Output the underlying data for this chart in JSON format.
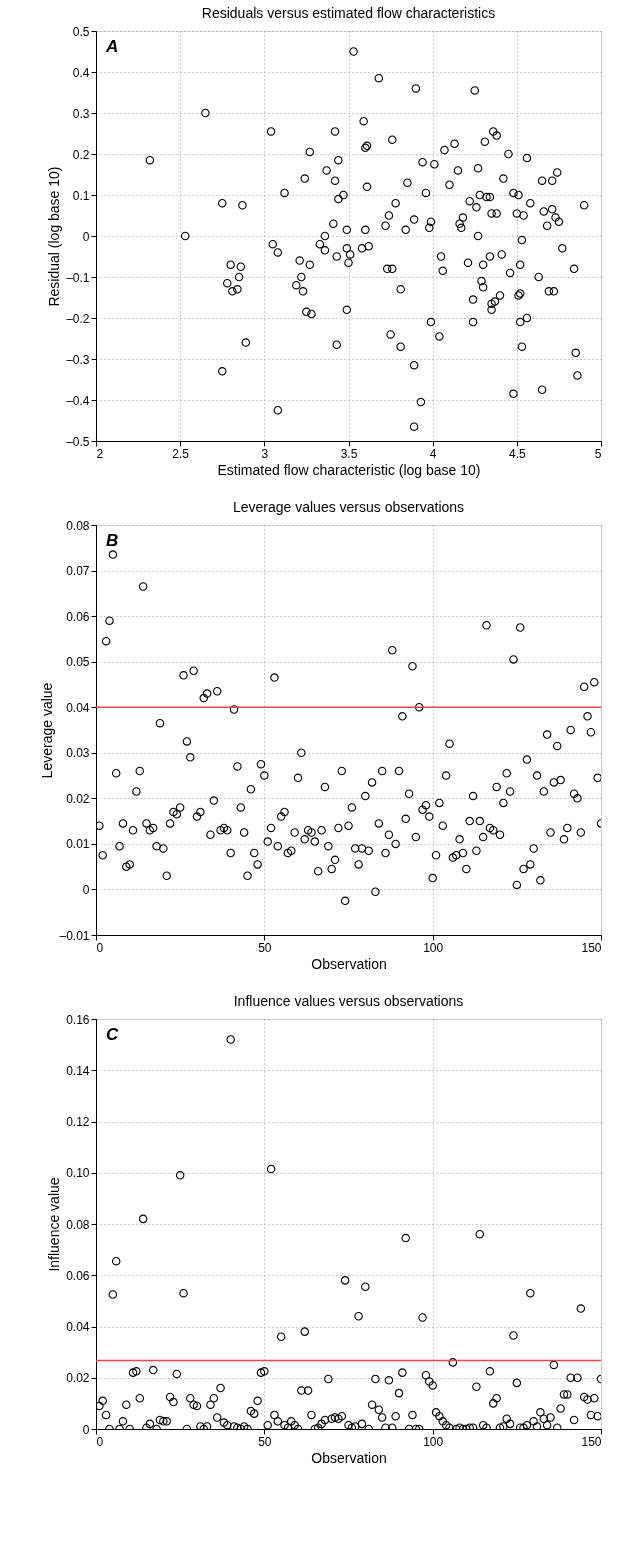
{
  "chart_data": [
    {
      "type": "scatter",
      "title": "Residuals versus estimated flow characteristics",
      "xlabel": "Estimated flow characteristic (log base 10)",
      "ylabel": "Residual (log base 10)",
      "annotations": [
        "A"
      ],
      "grid": true,
      "marker": "circle",
      "xlim": [
        2,
        5
      ],
      "xticks": [
        2,
        2.5,
        3,
        3.5,
        4,
        4.5,
        5
      ],
      "ylim": [
        -0.5,
        0.5
      ],
      "yticks": [
        {
          "value": -0.5,
          "label": "–0.5"
        },
        {
          "value": -0.4,
          "label": "–0.4"
        },
        {
          "value": -0.3,
          "label": "–0.3"
        },
        {
          "value": -0.2,
          "label": "–0.2"
        },
        {
          "value": -0.1,
          "label": "–0.1"
        },
        0,
        0.1,
        0.2,
        0.3,
        0.4,
        0.5
      ],
      "series": [
        {
          "color": "#000000",
          "x": [
            2.32,
            2.53,
            2.65,
            2.75,
            2.87,
            2.75,
            2.78,
            2.8,
            2.81,
            2.84,
            2.85,
            2.86,
            2.89,
            3.04,
            3.05,
            3.08,
            3.08,
            3.12,
            3.19,
            3.21,
            3.22,
            3.23,
            3.24,
            3.25,
            3.27,
            3.28,
            3.27,
            3.33,
            3.36,
            3.37,
            3.36,
            3.42,
            3.42,
            3.43,
            3.44,
            3.44,
            3.41,
            3.43,
            3.47,
            3.49,
            3.49,
            3.49,
            3.51,
            3.5,
            3.53,
            3.58,
            3.59,
            3.6,
            3.61,
            3.61,
            3.62,
            3.6,
            3.68,
            3.72,
            3.74,
            3.73,
            3.75,
            3.76,
            3.76,
            3.78,
            3.81,
            3.81,
            3.84,
            3.85,
            3.89,
            3.9,
            3.89,
            3.89,
            3.93,
            3.94,
            3.96,
            3.98,
            3.99,
            3.99,
            4.01,
            4.04,
            4.05,
            4.06,
            4.07,
            4.1,
            4.13,
            4.15,
            4.16,
            4.17,
            4.18,
            4.21,
            4.22,
            4.24,
            4.24,
            4.25,
            4.26,
            4.27,
            4.27,
            4.28,
            4.29,
            4.3,
            4.3,
            4.31,
            4.32,
            4.34,
            4.34,
            4.35,
            4.35,
            4.35,
            4.36,
            4.37,
            4.38,
            4.38,
            4.4,
            4.41,
            4.42,
            4.45,
            4.46,
            4.48,
            4.48,
            4.5,
            4.51,
            4.51,
            4.52,
            4.52,
            4.52,
            4.53,
            4.53,
            4.54,
            4.56,
            4.56,
            4.58,
            4.63,
            4.65,
            4.65,
            4.66,
            4.68,
            4.69,
            4.71,
            4.71,
            4.72,
            4.73,
            4.74,
            4.75,
            4.77,
            4.84,
            4.85,
            4.86,
            4.9
          ],
          "values": [
            0.185,
            0.0,
            0.3,
            0.08,
            0.075,
            -0.33,
            -0.115,
            -0.07,
            -0.135,
            -0.13,
            -0.1,
            -0.075,
            -0.26,
            0.255,
            -0.02,
            -0.04,
            -0.425,
            0.105,
            -0.12,
            -0.06,
            -0.1,
            -0.135,
            0.14,
            -0.185,
            -0.07,
            -0.19,
            0.205,
            -0.02,
            -0.035,
            0.16,
            0.0,
            0.135,
            0.255,
            -0.05,
            0.09,
            0.185,
            0.03,
            -0.265,
            0.1,
            0.015,
            -0.18,
            -0.03,
            -0.045,
            -0.065,
            0.45,
            -0.03,
            0.28,
            0.215,
            0.22,
            0.12,
            -0.025,
            0.015,
            0.385,
            0.025,
            0.05,
            -0.08,
            -0.24,
            -0.08,
            0.235,
            0.08,
            -0.27,
            -0.13,
            0.015,
            0.13,
            0.04,
            0.36,
            -0.315,
            -0.465,
            -0.405,
            0.18,
            0.105,
            0.02,
            0.035,
            -0.21,
            0.175,
            -0.245,
            -0.05,
            -0.085,
            0.21,
            0.125,
            0.225,
            0.16,
            0.03,
            0.02,
            0.045,
            -0.065,
            0.085,
            -0.155,
            -0.21,
            0.355,
            0.07,
            0.165,
            0.0,
            0.1,
            -0.11,
            -0.125,
            -0.07,
            0.23,
            0.095,
            0.095,
            -0.05,
            0.055,
            -0.165,
            -0.18,
            0.255,
            -0.16,
            0.245,
            0.055,
            -0.145,
            -0.045,
            0.14,
            0.2,
            -0.09,
            -0.385,
            0.105,
            0.055,
            -0.145,
            0.1,
            -0.21,
            -0.14,
            -0.07,
            -0.27,
            -0.01,
            0.05,
            0.19,
            -0.2,
            0.08,
            -0.1,
            0.135,
            -0.375,
            0.06,
            0.025,
            -0.135,
            0.065,
            0.135,
            -0.135,
            0.045,
            0.155,
            0.035,
            -0.03,
            -0.08,
            -0.285,
            -0.34,
            0.075
          ]
        }
      ]
    },
    {
      "type": "scatter",
      "title": "Leverage values versus observations",
      "xlabel": "Observation",
      "ylabel": "Leverage value",
      "annotations": [
        "B"
      ],
      "grid": true,
      "marker": "circle",
      "xlim": [
        0,
        150
      ],
      "xticks": [
        0,
        50,
        100,
        150
      ],
      "ylim": [
        -0.01,
        0.08
      ],
      "yticks": [
        {
          "value": -0.01,
          "label": "–0.01"
        },
        0,
        0.01,
        0.02,
        0.03,
        0.04,
        0.05,
        0.06,
        0.07,
        0.08
      ],
      "ref_lines": [
        {
          "axis": "y",
          "value": 0.04,
          "color": "#e8474c"
        }
      ],
      "series": [
        {
          "color": "#000000",
          "x": [
            1,
            2,
            3,
            4,
            5,
            6,
            7,
            8,
            9,
            10,
            11,
            12,
            13,
            14,
            15,
            16,
            17,
            18,
            19,
            20,
            21,
            22,
            23,
            24,
            25,
            26,
            27,
            28,
            29,
            30,
            31,
            32,
            33,
            34,
            35,
            36,
            37,
            38,
            39,
            40,
            41,
            42,
            43,
            44,
            45,
            46,
            47,
            48,
            49,
            50,
            51,
            52,
            53,
            54,
            55,
            56,
            57,
            58,
            59,
            60,
            61,
            62,
            63,
            64,
            65,
            66,
            67,
            68,
            69,
            70,
            71,
            72,
            73,
            74,
            75,
            76,
            77,
            78,
            79,
            80,
            81,
            82,
            83,
            84,
            85,
            86,
            87,
            88,
            89,
            90,
            91,
            92,
            93,
            94,
            95,
            96,
            97,
            98,
            99,
            100,
            101,
            102,
            103,
            104,
            105,
            106,
            107,
            108,
            109,
            110,
            111,
            112,
            113,
            114,
            115,
            116,
            117,
            118,
            119,
            120,
            121,
            122,
            123,
            124,
            125,
            126,
            127,
            128,
            129,
            130,
            131,
            132,
            133,
            134,
            135,
            136,
            137,
            138,
            139,
            140,
            141,
            142,
            143,
            144,
            145,
            146,
            147,
            148,
            149,
            150
          ],
          "values": [
            0.014,
            0.0075,
            0.0545,
            0.059,
            0.0735,
            0.0255,
            0.0095,
            0.0145,
            0.005,
            0.0055,
            0.013,
            0.0215,
            0.026,
            0.0665,
            0.0145,
            0.013,
            0.0135,
            0.0095,
            0.0365,
            0.009,
            0.003,
            0.0145,
            0.017,
            0.0165,
            0.018,
            0.047,
            0.0325,
            0.029,
            0.048,
            0.016,
            0.017,
            0.042,
            0.043,
            0.012,
            0.0195,
            0.0435,
            0.013,
            0.0135,
            0.013,
            0.008,
            0.0395,
            0.027,
            0.018,
            0.0125,
            0.003,
            0.022,
            0.008,
            0.0055,
            0.0275,
            0.025,
            0.0105,
            0.0135,
            0.0465,
            0.0095,
            0.016,
            0.017,
            0.008,
            0.0085,
            0.0125,
            0.0245,
            0.03,
            0.011,
            0.013,
            0.0125,
            0.0105,
            0.004,
            0.013,
            0.0225,
            0.0095,
            0.0045,
            0.0065,
            0.0135,
            0.026,
            -0.0025,
            0.014,
            0.018,
            0.009,
            0.0055,
            0.009,
            0.0205,
            0.0085,
            0.0235,
            -0.0005,
            0.0145,
            0.026,
            0.008,
            0.012,
            0.0525,
            0.01,
            0.026,
            0.038,
            0.0155,
            0.021,
            0.049,
            0.0115,
            0.04,
            0.0175,
            0.0185,
            0.016,
            0.0025,
            0.0075,
            0.019,
            0.014,
            0.025,
            0.032,
            0.007,
            0.0075,
            0.011,
            0.008,
            0.0045,
            0.015,
            0.0205,
            0.0085,
            0.015,
            0.0115,
            0.058,
            0.0135,
            0.013,
            0.0225,
            0.012,
            0.019,
            0.0255,
            0.0215,
            0.0505,
            0.001,
            0.0575,
            0.0045,
            0.0285,
            0.0055,
            0.009,
            0.025,
            0.002,
            0.0215,
            0.034,
            0.0125,
            0.0235,
            0.0315,
            0.024,
            0.011,
            0.0135,
            0.035,
            0.021,
            0.02,
            0.0125,
            0.0445,
            0.038,
            0.0345,
            0.0455,
            0.0245,
            0.0145
          ]
        }
      ]
    },
    {
      "type": "scatter",
      "title": "Influence values versus observations",
      "xlabel": "Observation",
      "ylabel": "Influence value",
      "annotations": [
        "C"
      ],
      "grid": true,
      "marker": "circle",
      "xlim": [
        0,
        150
      ],
      "xticks": [
        0,
        50,
        100,
        150
      ],
      "ylim": [
        0,
        0.16
      ],
      "yticks": [
        0,
        0.02,
        0.04,
        0.06,
        0.08,
        {
          "value": 0.1,
          "label": "0.10"
        },
        0.12,
        0.14,
        0.16
      ],
      "ref_lines": [
        {
          "axis": "y",
          "value": 0.0267,
          "color": "#e8474c"
        }
      ],
      "series": [
        {
          "color": "#000000",
          "x": [
            1,
            2,
            3,
            4,
            5,
            6,
            7,
            8,
            9,
            10,
            11,
            12,
            13,
            14,
            15,
            16,
            17,
            18,
            19,
            20,
            21,
            22,
            23,
            24,
            25,
            26,
            27,
            28,
            29,
            30,
            31,
            32,
            33,
            34,
            35,
            36,
            37,
            38,
            39,
            40,
            41,
            42,
            43,
            44,
            45,
            46,
            47,
            48,
            49,
            50,
            51,
            52,
            53,
            54,
            55,
            56,
            57,
            58,
            59,
            60,
            61,
            62,
            63,
            64,
            65,
            66,
            67,
            68,
            69,
            70,
            71,
            72,
            73,
            74,
            75,
            76,
            77,
            78,
            79,
            80,
            81,
            82,
            83,
            84,
            85,
            86,
            87,
            88,
            89,
            90,
            91,
            92,
            93,
            94,
            95,
            96,
            97,
            98,
            99,
            100,
            101,
            102,
            103,
            104,
            105,
            106,
            107,
            108,
            109,
            110,
            111,
            112,
            113,
            114,
            115,
            116,
            117,
            118,
            119,
            120,
            121,
            122,
            123,
            124,
            125,
            126,
            127,
            128,
            129,
            130,
            131,
            132,
            133,
            134,
            135,
            136,
            137,
            138,
            139,
            140,
            141,
            142,
            143,
            144,
            145,
            146,
            147,
            148,
            149,
            150
          ],
          "values": [
            0.009,
            0.011,
            0.0055,
            0,
            0.0525,
            0.0655,
            0,
            0.003,
            0.0095,
            0,
            0.022,
            0.0225,
            0.012,
            0.082,
            0.0005,
            0.002,
            0.023,
            0,
            0.0035,
            0.003,
            0.003,
            0.0125,
            0.0105,
            0.0215,
            0.099,
            0.053,
            0,
            0.012,
            0.0095,
            0.009,
            0.001,
            0,
            0.001,
            0.0095,
            0.012,
            0.0045,
            0.016,
            0.0025,
            0.0015,
            0.152,
            0.001,
            0.0005,
            0,
            0.001,
            0,
            0.007,
            0.006,
            0.011,
            0.022,
            0.0225,
            0.0015,
            0.1015,
            0.0055,
            0.003,
            0.036,
            0.0015,
            0.0005,
            0.003,
            0.0015,
            0,
            0.015,
            0.038,
            0.015,
            0.0055,
            0,
            0.0005,
            0.002,
            0.0035,
            0.0195,
            0.004,
            0.0045,
            0.004,
            0.005,
            0.058,
            0.0015,
            0.0005,
            0.001,
            0.044,
            0.002,
            0.0555,
            0,
            0.0095,
            0.0195,
            0.0075,
            0.0045,
            0.0005,
            0.019,
            0.0005,
            0.005,
            0.014,
            0.022,
            0.0745,
            0,
            0.0055,
            0,
            0,
            0.0435,
            0.021,
            0.0185,
            0.017,
            0.0065,
            0.005,
            0.003,
            0.0015,
            0.0005,
            0.026,
            0,
            0.0005,
            0,
            0,
            0.0005,
            0.0005,
            0.0165,
            0.076,
            0.0015,
            0.0005,
            0.0225,
            0.01,
            0.012,
            0.0005,
            0.001,
            0.004,
            0.002,
            0.0365,
            0.018,
            0.0005,
            0.0005,
            0.0015,
            0.053,
            0.003,
            0.001,
            0.0065,
            0.004,
            0.0015,
            0.0045,
            0.025,
            0.0005,
            0.008,
            0.0135,
            0.0135,
            0.02,
            0.0035,
            0.02,
            0.047,
            0.0125,
            0.0115,
            0.0055,
            0.012,
            0.005,
            0.0195
          ]
        }
      ]
    }
  ]
}
